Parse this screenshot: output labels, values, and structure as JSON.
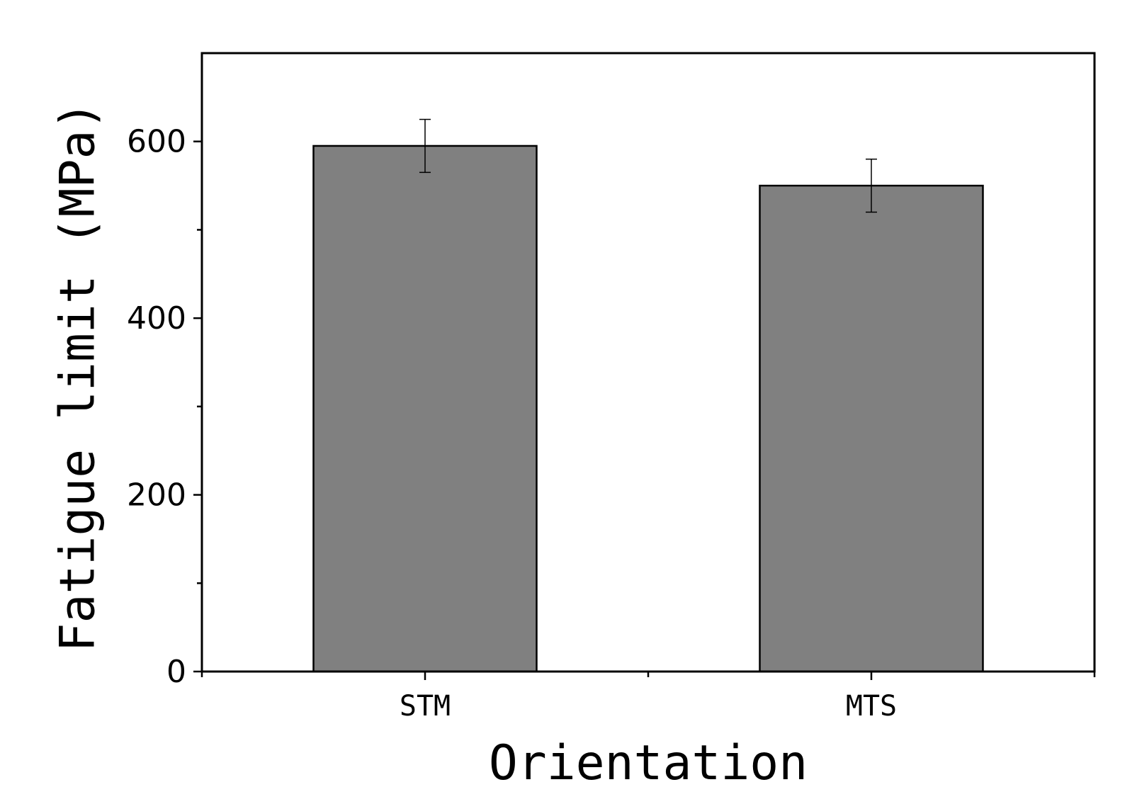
{
  "chart_data": {
    "type": "bar",
    "title": "",
    "xlabel": "Orientation",
    "ylabel": "Fatigue limit (MPa)",
    "categories": [
      "STM",
      "MTS"
    ],
    "values": [
      595,
      550
    ],
    "errors": [
      30,
      30
    ],
    "ylim": [
      0,
      700
    ],
    "yticks": [
      0,
      200,
      400,
      600
    ],
    "yticks_minor": [
      100,
      300,
      500
    ],
    "grid": false,
    "legend": "none",
    "bar_color": "#808080",
    "edge_color": "#000000"
  }
}
